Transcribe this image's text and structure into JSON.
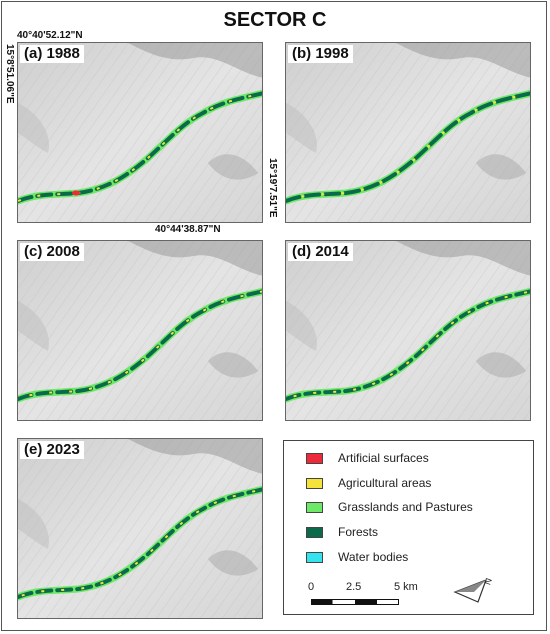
{
  "title": "SECTOR C",
  "panels": [
    {
      "label": "(a) 1988"
    },
    {
      "label": "(b) 1998"
    },
    {
      "label": "(c) 2008"
    },
    {
      "label": "(d) 2014"
    },
    {
      "label": "(e) 2023"
    }
  ],
  "coordinates": {
    "top": "40°40'52.12\"N",
    "left": "15°8'51.06\"E",
    "right": "15°19'7.51\"E",
    "bottom": "40°44'38.87\"N"
  },
  "legend": {
    "items": [
      {
        "label": "Artificial surfaces",
        "color": "#ee2a3a"
      },
      {
        "label": "Agricultural areas",
        "color": "#f5e23a"
      },
      {
        "label": "Grasslands and Pastures",
        "color": "#6ee867"
      },
      {
        "label": "Forests",
        "color": "#0b6a4a"
      },
      {
        "label": "Water bodies",
        "color": "#35e3ee"
      }
    ]
  },
  "scale_bar": {
    "ticks": [
      "0",
      "2.5",
      "5 km"
    ]
  },
  "north_arrow": {
    "label": "N"
  }
}
